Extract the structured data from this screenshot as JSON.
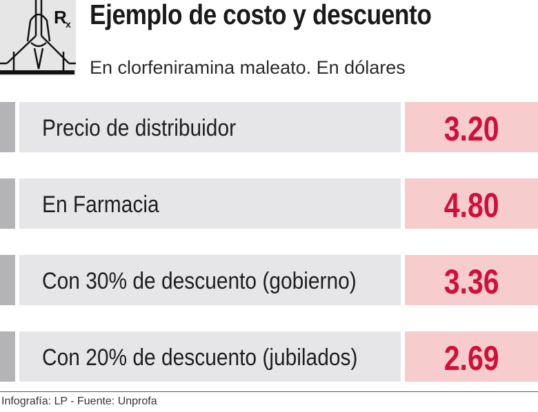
{
  "header": {
    "title": "Ejemplo de costo y descuento",
    "subtitle": "En clorfeniramina maleato. En dólares",
    "logo_text": "Rx"
  },
  "colors": {
    "value_text": "#d0103a",
    "value_bg": "#f6cdcc",
    "label_bg": "#e6e6e8",
    "stub": "#b4b4b6"
  },
  "chart_data": {
    "type": "table",
    "rows": [
      {
        "label": "Precio de distribuidor",
        "value": "3.20"
      },
      {
        "label": "En Farmacia",
        "value": "4.80"
      },
      {
        "label": "Con 30% de descuento (gobierno)",
        "value": "3.36"
      },
      {
        "label": "Con 20% de descuento (jubilados)",
        "value": "2.69"
      }
    ]
  },
  "footer": {
    "credit": "Infografía: LP - Fuente: Unprofa"
  }
}
